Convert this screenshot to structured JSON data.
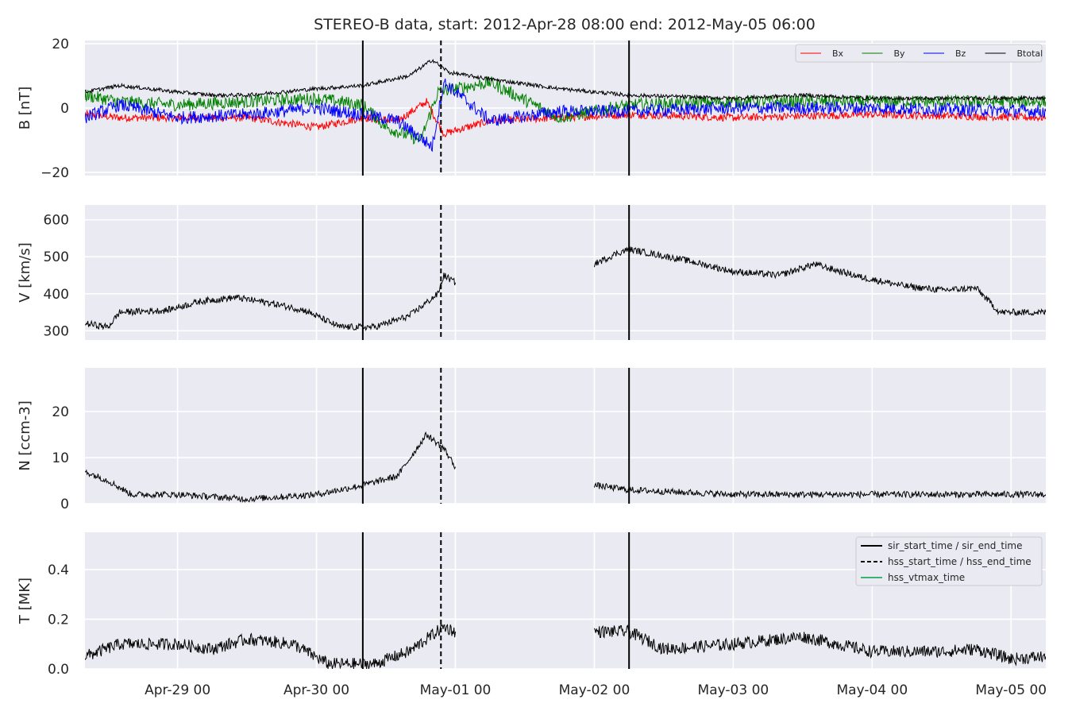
{
  "chart_data": {
    "type": "line",
    "title": "STEREO-B data, start: 2012-Apr-28 08:00  end: 2012-May-05 06:00",
    "x_range": [
      "2012-04-28 08:00",
      "2012-05-05 06:00"
    ],
    "x_ticks": [
      {
        "value": "2012-04-29 00:00",
        "label": "Apr-29 00"
      },
      {
        "value": "2012-04-30 00:00",
        "label": "Apr-30 00"
      },
      {
        "value": "2012-05-01 00:00",
        "label": "May-01 00"
      },
      {
        "value": "2012-05-02 00:00",
        "label": "May-02 00"
      },
      {
        "value": "2012-05-03 00:00",
        "label": "May-03 00"
      },
      {
        "value": "2012-05-04 00:00",
        "label": "May-04 00"
      },
      {
        "value": "2012-05-05 00:00",
        "label": "May-05 00"
      }
    ],
    "data_gap": [
      "2012-05-01 00:00",
      "2012-05-02 00:00"
    ],
    "event_lines": [
      {
        "time": "2012-04-30 08:00",
        "style": "solid"
      },
      {
        "time": "2012-04-30 21:30",
        "style": "dashed"
      },
      {
        "time": "2012-05-02 06:00",
        "style": "solid"
      }
    ],
    "panels": [
      {
        "id": "B",
        "ylabel": "B [nT]",
        "ylim": [
          -21,
          21
        ],
        "yticks": [
          {
            "v": 20,
            "label": "20"
          },
          {
            "v": 0,
            "label": "0"
          },
          {
            "v": -20,
            "label": "−20"
          }
        ],
        "legend": "upper-right-horizontal",
        "series": [
          {
            "name": "Bx",
            "color": "#ff0000",
            "points": [
              [
                "2012-04-28 08:00",
                -2
              ],
              [
                "2012-04-28 14:00",
                -3
              ],
              [
                "2012-04-29 00:00",
                -3
              ],
              [
                "2012-04-29 12:00",
                -3
              ],
              [
                "2012-04-30 00:00",
                -6
              ],
              [
                "2012-04-30 08:00",
                -3
              ],
              [
                "2012-04-30 14:00",
                -4
              ],
              [
                "2012-04-30 19:00",
                2
              ],
              [
                "2012-04-30 22:00",
                -8
              ],
              [
                "2012-05-01 06:00",
                -4
              ],
              [
                "2012-05-01 18:00",
                -3
              ],
              [
                "2012-05-02 06:00",
                -2
              ],
              [
                "2012-05-03 00:00",
                -3
              ],
              [
                "2012-05-04 00:00",
                -2
              ],
              [
                "2012-05-05 06:00",
                -3
              ]
            ]
          },
          {
            "name": "By",
            "color": "#008000",
            "points": [
              [
                "2012-04-28 08:00",
                4
              ],
              [
                "2012-04-28 14:00",
                2
              ],
              [
                "2012-04-29 00:00",
                1
              ],
              [
                "2012-04-29 12:00",
                2
              ],
              [
                "2012-04-30 00:00",
                3
              ],
              [
                "2012-04-30 08:00",
                1
              ],
              [
                "2012-04-30 12:00",
                -6
              ],
              [
                "2012-04-30 18:00",
                -10
              ],
              [
                "2012-04-30 21:00",
                5
              ],
              [
                "2012-05-01 06:00",
                8
              ],
              [
                "2012-05-01 18:00",
                -3
              ],
              [
                "2012-05-02 06:00",
                1
              ],
              [
                "2012-05-03 00:00",
                2
              ],
              [
                "2012-05-04 00:00",
                2
              ],
              [
                "2012-05-05 06:00",
                2
              ]
            ]
          },
          {
            "name": "Bz",
            "color": "#0000ff",
            "points": [
              [
                "2012-04-28 08:00",
                -3
              ],
              [
                "2012-04-28 14:00",
                1
              ],
              [
                "2012-04-29 00:00",
                -3
              ],
              [
                "2012-04-29 12:00",
                -2
              ],
              [
                "2012-04-30 00:00",
                0
              ],
              [
                "2012-04-30 08:00",
                -2
              ],
              [
                "2012-04-30 14:00",
                -4
              ],
              [
                "2012-04-30 20:00",
                -12
              ],
              [
                "2012-04-30 22:00",
                8
              ],
              [
                "2012-05-01 06:00",
                -4
              ],
              [
                "2012-05-01 18:00",
                -1
              ],
              [
                "2012-05-02 06:00",
                -1
              ],
              [
                "2012-05-03 00:00",
                0
              ],
              [
                "2012-05-04 00:00",
                0
              ],
              [
                "2012-05-05 06:00",
                -1
              ]
            ]
          },
          {
            "name": "Btotal",
            "color": "#000000",
            "points": [
              [
                "2012-04-28 08:00",
                5
              ],
              [
                "2012-04-28 14:00",
                7
              ],
              [
                "2012-04-29 00:00",
                5
              ],
              [
                "2012-04-29 06:00",
                4
              ],
              [
                "2012-04-29 12:00",
                4
              ],
              [
                "2012-04-30 00:00",
                6
              ],
              [
                "2012-04-30 08:00",
                7
              ],
              [
                "2012-04-30 16:00",
                10
              ],
              [
                "2012-04-30 20:00",
                15
              ],
              [
                "2012-04-30 23:00",
                11
              ],
              [
                "2012-05-01 06:00",
                9
              ],
              [
                "2012-05-01 18:00",
                6
              ],
              [
                "2012-05-02 06:00",
                4
              ],
              [
                "2012-05-03 00:00",
                3
              ],
              [
                "2012-05-03 12:00",
                4
              ],
              [
                "2012-05-04 00:00",
                3
              ],
              [
                "2012-05-05 06:00",
                3
              ]
            ]
          }
        ]
      },
      {
        "id": "V",
        "ylabel": "V [km/s]",
        "ylim": [
          275,
          640
        ],
        "yticks": [
          {
            "v": 600,
            "label": "600"
          },
          {
            "v": 500,
            "label": "500"
          },
          {
            "v": 400,
            "label": "400"
          },
          {
            "v": 300,
            "label": "300"
          }
        ],
        "series": [
          {
            "name": "V",
            "color": "#000000",
            "points": [
              [
                "2012-04-28 08:00",
                320
              ],
              [
                "2012-04-28 12:00",
                310
              ],
              [
                "2012-04-28 14:00",
                350
              ],
              [
                "2012-04-28 22:00",
                355
              ],
              [
                "2012-04-29 04:00",
                380
              ],
              [
                "2012-04-29 10:00",
                390
              ],
              [
                "2012-04-29 16:00",
                375
              ],
              [
                "2012-04-29 22:00",
                355
              ],
              [
                "2012-04-30 04:00",
                310
              ],
              [
                "2012-04-30 10:00",
                310
              ],
              [
                "2012-04-30 16:00",
                340
              ],
              [
                "2012-04-30 21:00",
                400
              ],
              [
                "2012-04-30 22:00",
                450
              ],
              [
                "2012-05-01 00:00",
                430
              ],
              null,
              [
                "2012-05-02 00:00",
                480
              ],
              [
                "2012-05-02 04:00",
                510
              ],
              [
                "2012-05-02 06:00",
                520
              ],
              [
                "2012-05-02 16:00",
                490
              ],
              [
                "2012-05-03 00:00",
                460
              ],
              [
                "2012-05-03 08:00",
                450
              ],
              [
                "2012-05-03 14:00",
                480
              ],
              [
                "2012-05-03 22:00",
                445
              ],
              [
                "2012-05-04 06:00",
                420
              ],
              [
                "2012-05-04 12:00",
                410
              ],
              [
                "2012-05-04 18:00",
                415
              ],
              [
                "2012-05-04 22:00",
                350
              ],
              [
                "2012-05-05 06:00",
                350
              ]
            ]
          }
        ]
      },
      {
        "id": "N",
        "ylabel": "N [ccm-3]",
        "ylim": [
          0,
          29.5
        ],
        "yticks": [
          {
            "v": 20,
            "label": "20"
          },
          {
            "v": 10,
            "label": "10"
          },
          {
            "v": 0,
            "label": "0"
          }
        ],
        "series": [
          {
            "name": "N",
            "color": "#000000",
            "points": [
              [
                "2012-04-28 08:00",
                7
              ],
              [
                "2012-04-28 12:00",
                5
              ],
              [
                "2012-04-28 16:00",
                2
              ],
              [
                "2012-04-29 00:00",
                2
              ],
              [
                "2012-04-29 12:00",
                1
              ],
              [
                "2012-04-30 00:00",
                2
              ],
              [
                "2012-04-30 08:00",
                4
              ],
              [
                "2012-04-30 14:00",
                6
              ],
              [
                "2012-04-30 19:00",
                15
              ],
              [
                "2012-04-30 22:00",
                12
              ],
              [
                "2012-05-01 00:00",
                8
              ],
              null,
              [
                "2012-05-02 00:00",
                4
              ],
              [
                "2012-05-02 06:00",
                3
              ],
              [
                "2012-05-03 00:00",
                2
              ],
              [
                "2012-05-04 00:00",
                2
              ],
              [
                "2012-05-05 06:00",
                2
              ]
            ]
          }
        ]
      },
      {
        "id": "T",
        "ylabel": "T [MK]",
        "ylim": [
          0,
          0.55
        ],
        "yticks": [
          {
            "v": 0.4,
            "label": "0.4"
          },
          {
            "v": 0.2,
            "label": "0.2"
          },
          {
            "v": 0.0,
            "label": "0.0"
          }
        ],
        "legend": "upper-right",
        "legend_entries": [
          {
            "label": "sir_start_time / sir_end_time",
            "style": "solid",
            "color": "#000000"
          },
          {
            "label": "hss_start_time / hss_end_time",
            "style": "dashed",
            "color": "#000000"
          },
          {
            "label": "hss_vtmax_time",
            "style": "solid",
            "color": "#3cb371"
          }
        ],
        "series": [
          {
            "name": "T",
            "color": "#000000",
            "points": [
              [
                "2012-04-28 08:00",
                0.05
              ],
              [
                "2012-04-28 14:00",
                0.1
              ],
              [
                "2012-04-29 00:00",
                0.1
              ],
              [
                "2012-04-29 06:00",
                0.08
              ],
              [
                "2012-04-29 12:00",
                0.12
              ],
              [
                "2012-04-29 20:00",
                0.1
              ],
              [
                "2012-04-30 02:00",
                0.02
              ],
              [
                "2012-04-30 10:00",
                0.02
              ],
              [
                "2012-04-30 16:00",
                0.07
              ],
              [
                "2012-04-30 22:00",
                0.17
              ],
              [
                "2012-05-01 00:00",
                0.15
              ],
              null,
              [
                "2012-05-02 00:00",
                0.15
              ],
              [
                "2012-05-02 06:00",
                0.15
              ],
              [
                "2012-05-02 12:00",
                0.08
              ],
              [
                "2012-05-03 00:00",
                0.1
              ],
              [
                "2012-05-03 12:00",
                0.13
              ],
              [
                "2012-05-04 00:00",
                0.07
              ],
              [
                "2012-05-04 12:00",
                0.07
              ],
              [
                "2012-05-04 18:00",
                0.08
              ],
              [
                "2012-05-05 00:00",
                0.04
              ],
              [
                "2012-05-05 06:00",
                0.05
              ]
            ]
          }
        ]
      }
    ]
  }
}
